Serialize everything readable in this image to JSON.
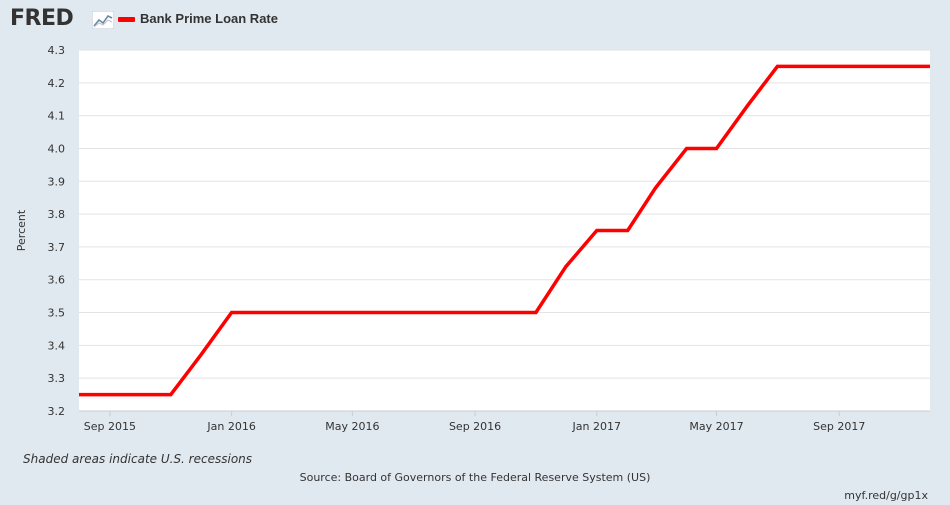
{
  "header": {
    "logo_text": "FRED",
    "logo_icon": "trend-graph-icon",
    "series_label": "Bank Prime Loan Rate"
  },
  "colors": {
    "series": "#ff0000",
    "background": "#e1e9f0",
    "plot_background": "#ffffff",
    "grid": "#e3e3e3"
  },
  "footer": {
    "note": "Shaded areas indicate U.S. recessions",
    "source": "Source: Board of Governors of the Federal Reserve System (US)",
    "shortlink": "myf.red/g/gp1x"
  },
  "chart_data": {
    "type": "line",
    "title": "",
    "ylabel": "Percent",
    "xlabel": "",
    "ylim": [
      3.2,
      4.3
    ],
    "xlim": [
      "2015-08-01",
      "2017-12-01"
    ],
    "yticks": [
      "3.2",
      "3.3",
      "3.4",
      "3.5",
      "3.6",
      "3.7",
      "3.8",
      "3.9",
      "4.0",
      "4.1",
      "4.2",
      "4.3"
    ],
    "xticks": [
      {
        "date": "2015-09-01",
        "label": "Sep 2015"
      },
      {
        "date": "2016-01-01",
        "label": "Jan 2016"
      },
      {
        "date": "2016-05-01",
        "label": "May 2016"
      },
      {
        "date": "2016-09-01",
        "label": "Sep 2016"
      },
      {
        "date": "2017-01-01",
        "label": "Jan 2017"
      },
      {
        "date": "2017-05-01",
        "label": "May 2017"
      },
      {
        "date": "2017-09-01",
        "label": "Sep 2017"
      }
    ],
    "grid": true,
    "series": [
      {
        "name": "Bank Prime Loan Rate",
        "x": [
          "2015-08-01",
          "2015-09-01",
          "2015-10-01",
          "2015-11-01",
          "2015-12-01",
          "2016-01-01",
          "2016-02-01",
          "2016-03-01",
          "2016-04-01",
          "2016-05-01",
          "2016-06-01",
          "2016-07-01",
          "2016-08-01",
          "2016-09-01",
          "2016-10-01",
          "2016-11-01",
          "2016-12-01",
          "2017-01-01",
          "2017-02-01",
          "2017-03-01",
          "2017-04-01",
          "2017-05-01",
          "2017-06-01",
          "2017-07-01",
          "2017-08-01",
          "2017-09-01",
          "2017-10-01",
          "2017-11-01",
          "2017-12-01"
        ],
        "values": [
          3.25,
          3.25,
          3.25,
          3.25,
          3.37,
          3.5,
          3.5,
          3.5,
          3.5,
          3.5,
          3.5,
          3.5,
          3.5,
          3.5,
          3.5,
          3.5,
          3.64,
          3.75,
          3.75,
          3.88,
          4.0,
          4.0,
          4.13,
          4.25,
          4.25,
          4.25,
          4.25,
          4.25,
          4.25
        ]
      }
    ]
  }
}
